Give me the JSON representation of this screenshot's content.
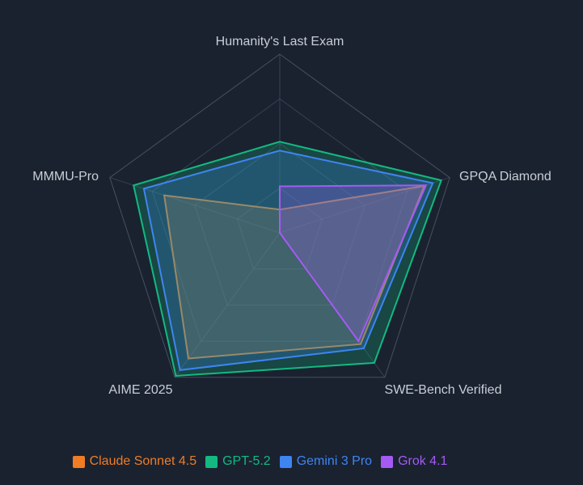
{
  "theme": {
    "background": "#1a2230",
    "grid_color": "#4b5565",
    "label_color": "#c9ced6"
  },
  "chart_data": {
    "type": "radar",
    "title": "",
    "categories": [
      "Humanity's Last Exam",
      "GPQA Diamond",
      "SWE-Bench Verified",
      "AIME 2025",
      "MMMU-Pro"
    ],
    "series": [
      {
        "name": "Claude Sonnet 4.5",
        "color": "#f07c24",
        "values": [
          13,
          85,
          77,
          87,
          68
        ]
      },
      {
        "name": "GPT-5.2",
        "color": "#13b981",
        "values": [
          51,
          95,
          90,
          99,
          86
        ]
      },
      {
        "name": "Gemini 3 Pro",
        "color": "#3e85f1",
        "values": [
          46,
          90,
          80,
          95,
          80
        ]
      },
      {
        "name": "Grok 4.1",
        "color": "#a55af4",
        "values": [
          26,
          86,
          75,
          0,
          0
        ]
      }
    ],
    "scale": {
      "min": 0,
      "max": 100,
      "rings": [
        25,
        50,
        75,
        100
      ]
    },
    "grid": true,
    "fill_opacity": 0.25,
    "legend_position": "bottom"
  }
}
